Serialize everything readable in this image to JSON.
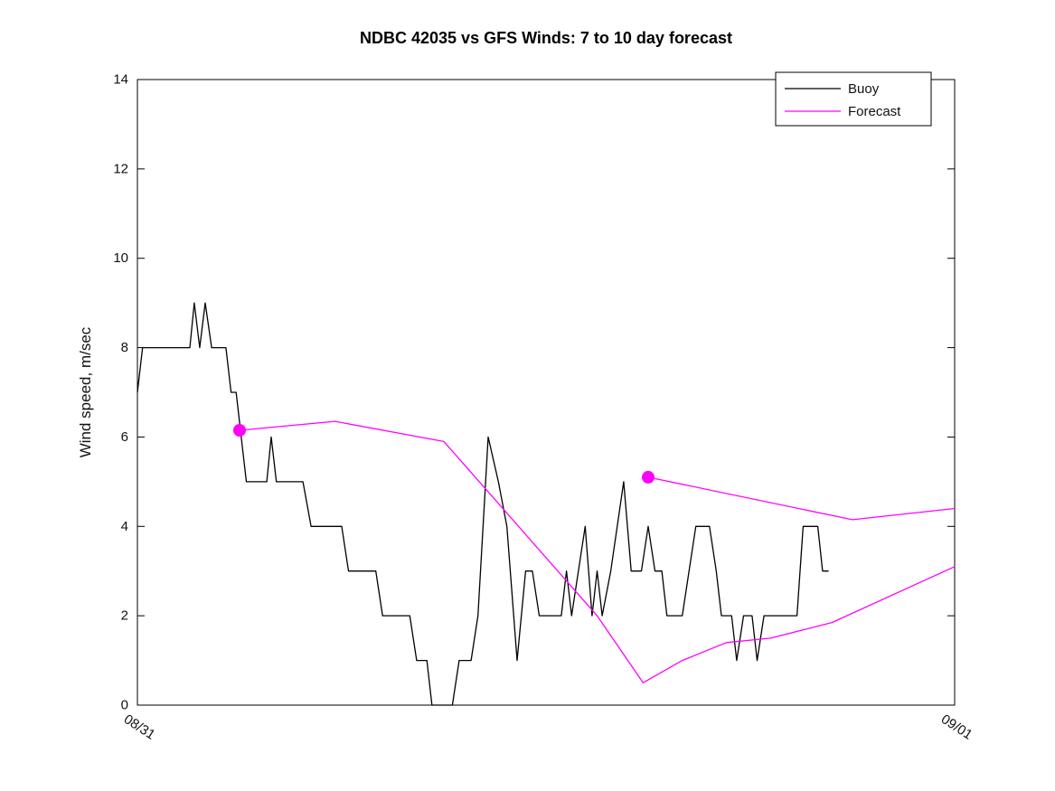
{
  "chart_data": {
    "type": "line",
    "title": "NDBC 42035 vs GFS Winds: 7 to 10 day forecast",
    "xlabel": "",
    "ylabel": "Wind speed, m/sec",
    "ylim": [
      0,
      14
    ],
    "yticks": [
      0,
      2,
      4,
      6,
      8,
      10,
      12,
      14
    ],
    "xlim_hours": [
      0,
      24
    ],
    "xticks": [
      {
        "pos": 0,
        "label": "08/31"
      },
      {
        "pos": 24,
        "label": "09/01"
      }
    ],
    "grid": false,
    "legend": [
      "Buoy",
      "Forecast"
    ],
    "legend_position": "top-right",
    "colors": {
      "buoy": "#000000",
      "forecast": "#ff00ff"
    },
    "series": [
      {
        "name": "Buoy",
        "color": "#000000",
        "marker_start": false,
        "points": [
          [
            0,
            7
          ],
          [
            0.15,
            8
          ],
          [
            1.54,
            8
          ],
          [
            1.67,
            9
          ],
          [
            1.83,
            8
          ],
          [
            1.99,
            9
          ],
          [
            2.18,
            8
          ],
          [
            2.6,
            8
          ],
          [
            2.75,
            7
          ],
          [
            2.9,
            7
          ],
          [
            3.2,
            5
          ],
          [
            3.8,
            5
          ],
          [
            3.93,
            6
          ],
          [
            4.08,
            5
          ],
          [
            4.86,
            5
          ],
          [
            5.1,
            4
          ],
          [
            6.0,
            4
          ],
          [
            6.2,
            3
          ],
          [
            7.0,
            3
          ],
          [
            7.2,
            2
          ],
          [
            8.0,
            2
          ],
          [
            8.2,
            1
          ],
          [
            8.5,
            1
          ],
          [
            8.65,
            0
          ],
          [
            9.25,
            0
          ],
          [
            9.45,
            1
          ],
          [
            9.8,
            1
          ],
          [
            10.0,
            2
          ],
          [
            10.3,
            6
          ],
          [
            10.6,
            5
          ],
          [
            10.85,
            4
          ],
          [
            11.15,
            1
          ],
          [
            11.4,
            3
          ],
          [
            11.6,
            3
          ],
          [
            11.8,
            2
          ],
          [
            12.45,
            2
          ],
          [
            12.6,
            3
          ],
          [
            12.75,
            2
          ],
          [
            12.95,
            3
          ],
          [
            13.15,
            4
          ],
          [
            13.35,
            2
          ],
          [
            13.5,
            3
          ],
          [
            13.65,
            2
          ],
          [
            13.9,
            3
          ],
          [
            14.28,
            5
          ],
          [
            14.5,
            3
          ],
          [
            14.8,
            3
          ],
          [
            15.0,
            4
          ],
          [
            15.2,
            3
          ],
          [
            15.4,
            3
          ],
          [
            15.55,
            2
          ],
          [
            16.0,
            2
          ],
          [
            16.2,
            3
          ],
          [
            16.4,
            4
          ],
          [
            16.8,
            4
          ],
          [
            17.0,
            3
          ],
          [
            17.15,
            2
          ],
          [
            17.45,
            2
          ],
          [
            17.6,
            1
          ],
          [
            17.8,
            2
          ],
          [
            18.05,
            2
          ],
          [
            18.2,
            1
          ],
          [
            18.4,
            2
          ],
          [
            19.37,
            2
          ],
          [
            19.55,
            4
          ],
          [
            19.98,
            4
          ],
          [
            20.12,
            3
          ],
          [
            20.3,
            3
          ]
        ]
      },
      {
        "name": "Forecast run 1",
        "color": "#ff00ff",
        "marker_start": true,
        "points": [
          [
            3.0,
            6.15
          ],
          [
            5.8,
            6.35
          ],
          [
            9.0,
            5.9
          ],
          [
            10.5,
            4.6
          ],
          [
            12.0,
            3.3
          ],
          [
            13.5,
            2.0
          ],
          [
            14.85,
            0.5
          ],
          [
            16.0,
            1.0
          ],
          [
            17.3,
            1.4
          ],
          [
            18.6,
            1.5
          ],
          [
            20.4,
            1.85
          ],
          [
            24.0,
            3.1
          ]
        ]
      },
      {
        "name": "Forecast run 2",
        "color": "#ff00ff",
        "marker_start": true,
        "points": [
          [
            15.0,
            5.1
          ],
          [
            21.0,
            4.15
          ],
          [
            24.0,
            4.4
          ]
        ]
      }
    ]
  }
}
